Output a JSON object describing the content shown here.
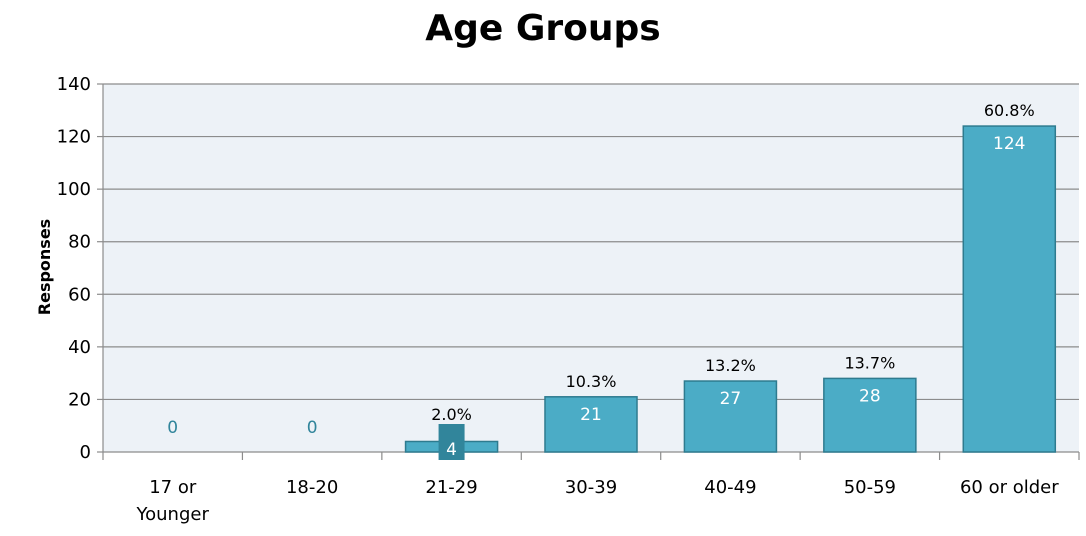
{
  "chart_data": {
    "type": "bar",
    "title": "Age Groups",
    "xlabel": "",
    "ylabel": "Responses",
    "ylim": [
      0,
      140
    ],
    "yticks": [
      0,
      20,
      40,
      60,
      80,
      100,
      120,
      140
    ],
    "grid": true,
    "legend": "none",
    "categories": [
      "17 or Younger",
      "18-20",
      "21-29",
      "30-39",
      "40-49",
      "50-59",
      "60 or older"
    ],
    "category_lines": [
      [
        "17 or",
        "Younger"
      ],
      [
        "18-20"
      ],
      [
        "21-29"
      ],
      [
        "30-39"
      ],
      [
        "40-49"
      ],
      [
        "50-59"
      ],
      [
        "60 or older"
      ]
    ],
    "values": [
      0,
      0,
      4,
      21,
      27,
      28,
      124
    ],
    "value_labels": [
      "0",
      "0",
      "4",
      "21",
      "27",
      "28",
      "124"
    ],
    "percent_labels": [
      "",
      "",
      "2.0%",
      "10.3%",
      "13.2%",
      "13.7%",
      "60.8%"
    ],
    "colors": {
      "bar": "#4bacc6",
      "bar_border": "#2e7b8f",
      "plot_bg": "#edf2f7",
      "grid": "#8c8c8c",
      "zero_label": "#31859b",
      "small_label_bg": "#31859b"
    }
  }
}
